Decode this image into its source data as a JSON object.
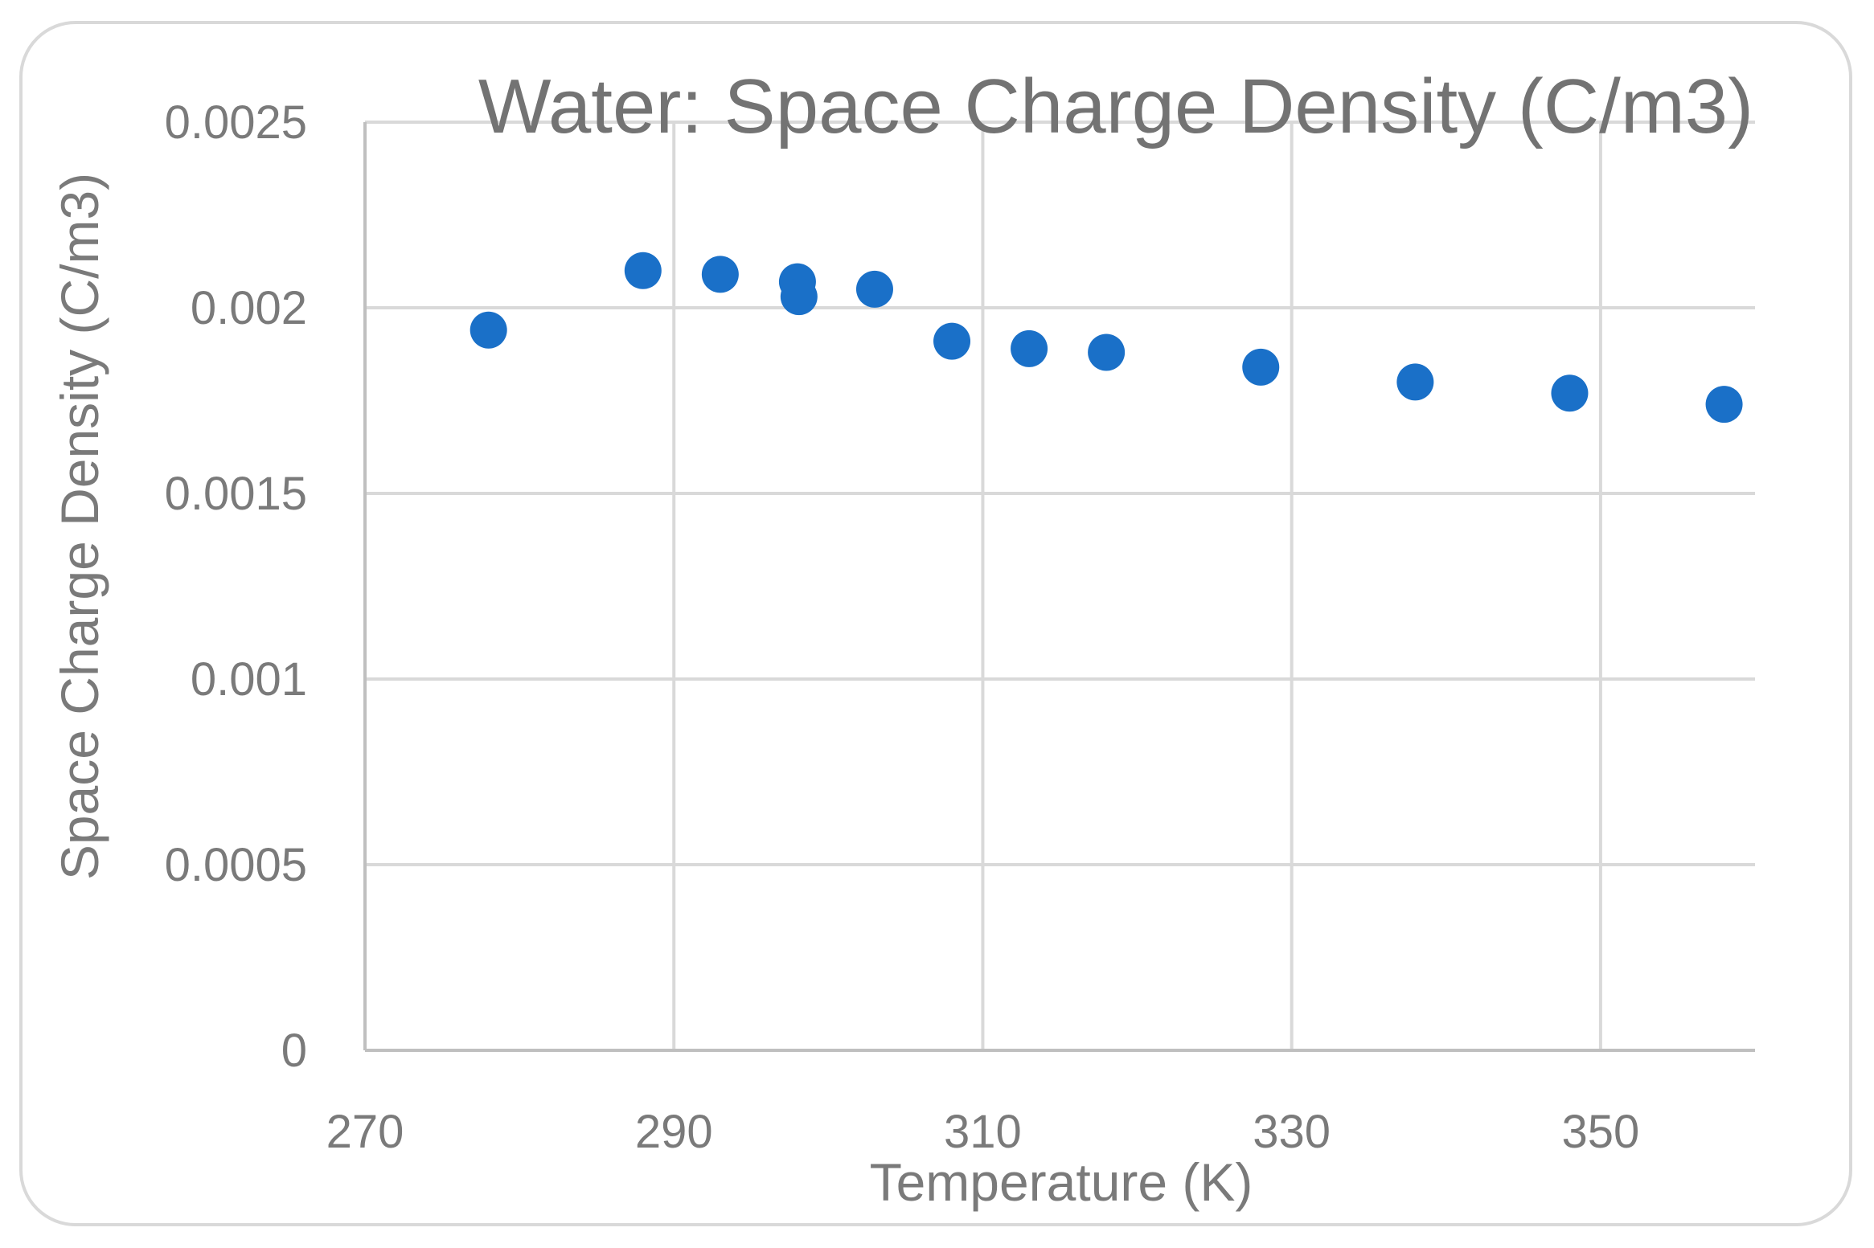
{
  "chart_data": {
    "type": "scatter",
    "title": "Water: Space Charge Density (C/m3)",
    "xlabel": "Temperature (K)",
    "ylabel": "Space Charge Density (C/m3)",
    "xlim": [
      270,
      360
    ],
    "ylim": [
      0,
      0.0025
    ],
    "grid": true,
    "x_tick_values": [
      270,
      290,
      310,
      330,
      350
    ],
    "y_tick_values": [
      0,
      0.0005,
      0.001,
      0.0015,
      0.002,
      0.0025
    ],
    "x_tick_labels": [
      "270",
      "290",
      "310",
      "330",
      "350"
    ],
    "y_tick_labels": [
      "0",
      "0.0005",
      "0.001",
      "0.0015",
      "0.002",
      "0.0025"
    ],
    "series": [
      {
        "name": "Water",
        "color": "#1a70c8",
        "points": [
          {
            "x": 278,
            "y": 0.00194
          },
          {
            "x": 288,
            "y": 0.0021
          },
          {
            "x": 293,
            "y": 0.00209
          },
          {
            "x": 298,
            "y": 0.00207
          },
          {
            "x": 298.1,
            "y": 0.00203
          },
          {
            "x": 303,
            "y": 0.00205
          },
          {
            "x": 308,
            "y": 0.00191
          },
          {
            "x": 313,
            "y": 0.00189
          },
          {
            "x": 318,
            "y": 0.00188
          },
          {
            "x": 328,
            "y": 0.00184
          },
          {
            "x": 338,
            "y": 0.0018
          },
          {
            "x": 348,
            "y": 0.00177
          },
          {
            "x": 358,
            "y": 0.00174
          }
        ]
      }
    ]
  }
}
